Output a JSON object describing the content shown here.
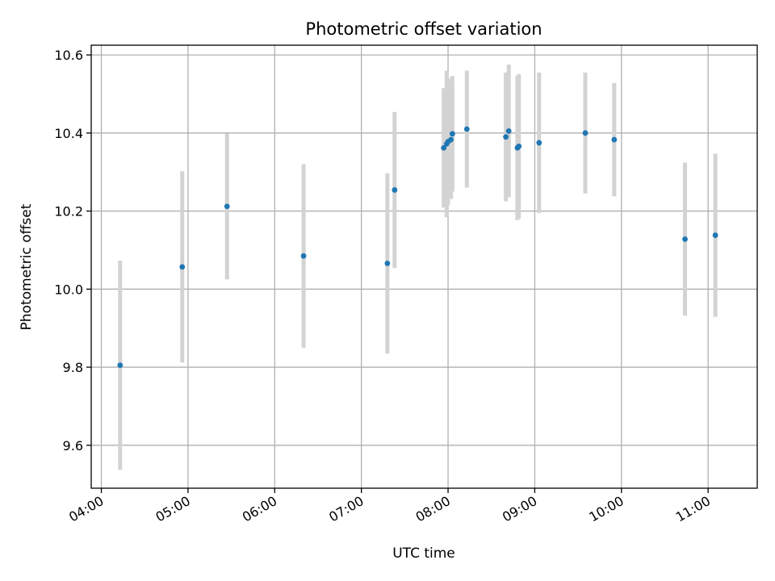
{
  "chart_data": {
    "type": "scatter",
    "title": "Photometric offset variation",
    "xlabel": "UTC time",
    "ylabel": "Photometric offset",
    "x_ticks": [
      "04:00",
      "05:00",
      "06:00",
      "07:00",
      "08:00",
      "09:00",
      "10:00",
      "11:00"
    ],
    "y_ticks": [
      "9.6",
      "9.8",
      "10.0",
      "10.2",
      "10.4",
      "10.6"
    ],
    "xlim": [
      "03:53",
      "11:34"
    ],
    "ylim": [
      9.49,
      10.625
    ],
    "grid": true,
    "colors": {
      "point": "#1f77b4",
      "error_bar": "#d3d3d3",
      "grid": "#b0b0b0"
    },
    "points": [
      {
        "time": "04:13",
        "y": 9.805,
        "err": 0.268
      },
      {
        "time": "04:56",
        "y": 10.057,
        "err": 0.245
      },
      {
        "time": "05:27",
        "y": 10.212,
        "err": 0.187
      },
      {
        "time": "06:20",
        "y": 10.085,
        "err": 0.235
      },
      {
        "time": "07:18",
        "y": 10.066,
        "err": 0.231
      },
      {
        "time": "07:23",
        "y": 10.254,
        "err": 0.2
      },
      {
        "time": "07:57",
        "y": 10.362,
        "err": 0.153
      },
      {
        "time": "07:59",
        "y": 10.372,
        "err": 0.188
      },
      {
        "time": "08:00",
        "y": 10.378,
        "err": 0.163
      },
      {
        "time": "08:02",
        "y": 10.383,
        "err": 0.152
      },
      {
        "time": "08:03",
        "y": 10.398,
        "err": 0.148
      },
      {
        "time": "08:13",
        "y": 10.41,
        "err": 0.15
      },
      {
        "time": "08:40",
        "y": 10.39,
        "err": 0.165
      },
      {
        "time": "08:42",
        "y": 10.405,
        "err": 0.17
      },
      {
        "time": "08:48",
        "y": 10.362,
        "err": 0.185
      },
      {
        "time": "08:49",
        "y": 10.366,
        "err": 0.185
      },
      {
        "time": "09:03",
        "y": 10.375,
        "err": 0.18
      },
      {
        "time": "09:35",
        "y": 10.4,
        "err": 0.155
      },
      {
        "time": "09:55",
        "y": 10.383,
        "err": 0.145
      },
      {
        "time": "10:44",
        "y": 10.128,
        "err": 0.196
      },
      {
        "time": "11:05",
        "y": 10.138,
        "err": 0.209
      }
    ]
  }
}
